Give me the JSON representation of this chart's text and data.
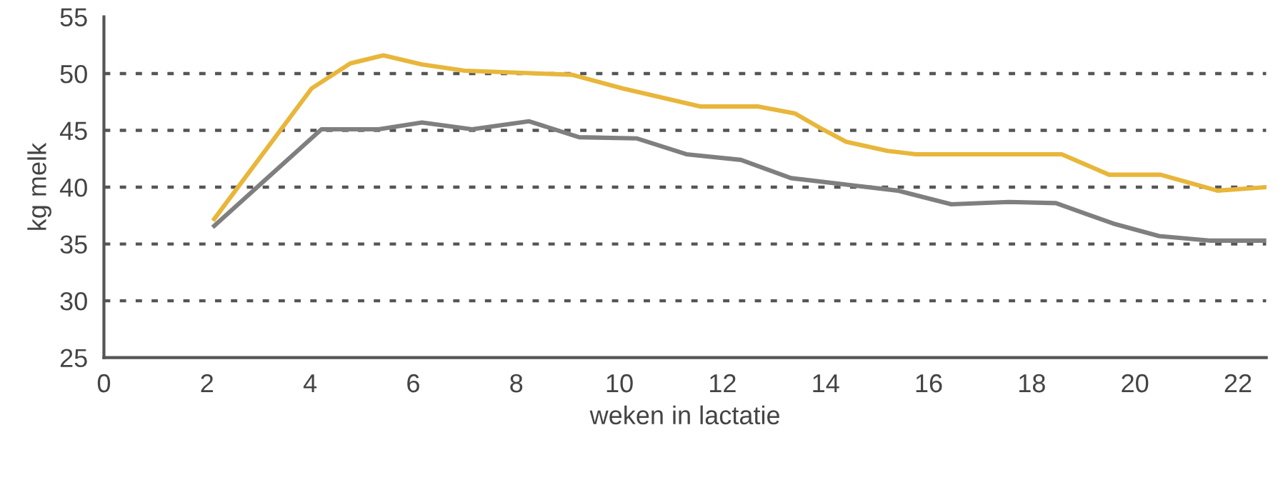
{
  "chart_data": {
    "type": "line",
    "xlabel": "weken in lactatie",
    "ylabel": "kg melk",
    "xlim": [
      0,
      22.55
    ],
    "xticks": [
      0,
      2,
      4,
      6,
      8,
      10,
      12,
      14,
      16,
      18,
      20,
      22
    ],
    "ylim": [
      25,
      55
    ],
    "yticks": [
      25,
      30,
      35,
      40,
      45,
      50,
      55
    ],
    "grid": "y",
    "line_style": "solid",
    "legend": false,
    "series": [
      {
        "color": "#e8b63a",
        "x": [
          2.14,
          4.03,
          4.78,
          5.42,
          6.17,
          7.0,
          9.08,
          10.06,
          11.58,
          12.7,
          13.4,
          13.9,
          14.4,
          15.2,
          15.75,
          18.58,
          19.5,
          20.5,
          21.6,
          22.55
        ],
        "values": [
          37.2,
          48.7,
          50.9,
          51.6,
          50.8,
          50.25,
          49.9,
          48.7,
          47.1,
          47.1,
          46.5,
          45.2,
          44.0,
          43.2,
          42.9,
          42.9,
          41.1,
          41.1,
          39.7,
          40.0
        ]
      },
      {
        "color": "#7f7f7f",
        "x": [
          2.14,
          4.22,
          5.33,
          6.17,
          7.14,
          8.25,
          9.22,
          10.33,
          11.3,
          12.36,
          13.33,
          14.64,
          15.4,
          16.44,
          17.56,
          18.47,
          19.58,
          20.47,
          21.44,
          22.55
        ],
        "values": [
          36.6,
          45.1,
          45.1,
          45.7,
          45.1,
          45.8,
          44.4,
          44.3,
          42.9,
          42.4,
          40.8,
          40.1,
          39.7,
          38.5,
          38.7,
          38.6,
          36.8,
          35.7,
          35.3,
          35.3
        ]
      }
    ]
  }
}
